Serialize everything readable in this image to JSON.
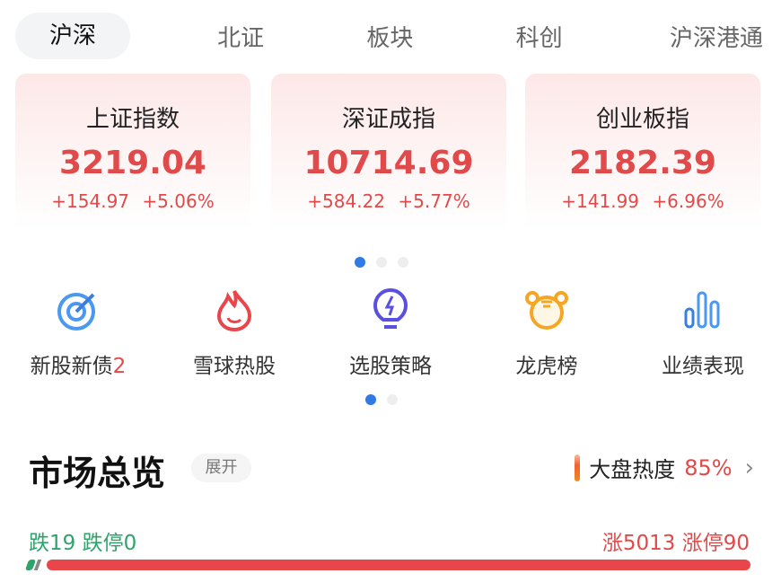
{
  "tabs": [
    "沪深",
    "北证",
    "板块",
    "科创",
    "沪深港通"
  ],
  "indices": [
    {
      "name": "上证指数",
      "value": "3219.04",
      "change": "+154.97",
      "pct": "+5.06%"
    },
    {
      "name": "深证成指",
      "value": "10714.69",
      "change": "+584.22",
      "pct": "+5.77%"
    },
    {
      "name": "创业板指",
      "value": "2182.39",
      "change": "+141.99",
      "pct": "+6.96%"
    }
  ],
  "shortcuts": [
    {
      "label": "新股新债",
      "badge": "2",
      "icon": "target-icon"
    },
    {
      "label": "雪球热股",
      "badge": "",
      "icon": "flame-icon"
    },
    {
      "label": "选股策略",
      "badge": "",
      "icon": "lightbulb-icon"
    },
    {
      "label": "龙虎榜",
      "badge": "",
      "icon": "tiger-icon"
    },
    {
      "label": "业绩表现",
      "badge": "",
      "icon": "bar-chart-icon"
    }
  ],
  "overview": {
    "title": "市场总览",
    "expand": "展开",
    "heat_label": "大盘热度",
    "heat_pct": "85%",
    "down": "跌19 跌停0",
    "up": "涨5013 涨停90",
    "down_count": 19,
    "up_count": 5013
  },
  "colors": {
    "up": "#e04a4a",
    "down": "#2ea36a",
    "accent": "#2f7ae5"
  }
}
